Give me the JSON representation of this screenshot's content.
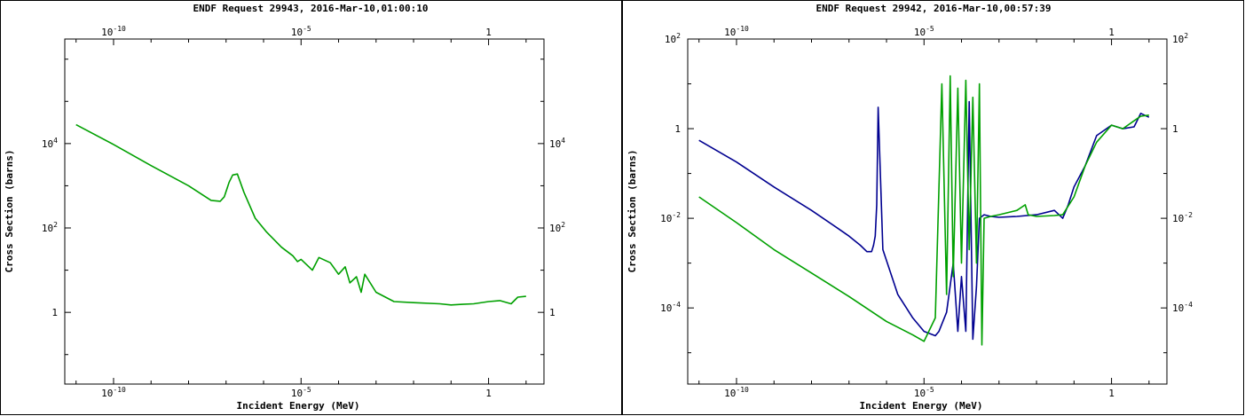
{
  "chart_data": [
    {
      "type": "line",
      "title": "ENDF Request 29943, 2016-Mar-10,01:00:10",
      "xlabel": "Incident Energy (MeV)",
      "ylabel": "Cross Section (barns)",
      "x_scale": "log",
      "y_scale": "log",
      "xlim": [
        5e-12,
        30
      ],
      "ylim": [
        0.02,
        3000000
      ],
      "x_ticks": [
        {
          "value": 1e-10,
          "base": "10",
          "exp": "-10"
        },
        {
          "value": 1e-05,
          "base": "10",
          "exp": "-5"
        },
        {
          "value": 1,
          "base": "1",
          "exp": ""
        }
      ],
      "y_ticks": [
        {
          "value": 1,
          "base": "1",
          "exp": ""
        },
        {
          "value": 100,
          "base": "10",
          "exp": "2"
        },
        {
          "value": 10000,
          "base": "10",
          "exp": "4"
        }
      ],
      "grid": false,
      "series": [
        {
          "color": "#00a000",
          "x": [
            1e-11,
            1e-10,
            1e-09,
            1e-08,
            4e-08,
            7e-08,
            9e-08,
            1.2e-07,
            1.5e-07,
            2e-07,
            3e-07,
            6e-07,
            1.2e-06,
            3e-06,
            6e-06,
            8e-06,
            1e-05,
            2e-05,
            3e-05,
            6e-05,
            0.0001,
            0.00015,
            0.0002,
            0.0003,
            0.0004,
            0.0005,
            0.001,
            0.003,
            0.01,
            0.05,
            0.1,
            0.2,
            0.4,
            1,
            2,
            4,
            6,
            10
          ],
          "y": [
            28000,
            9500,
            3000,
            1000,
            450,
            430,
            550,
            1200,
            1800,
            1900,
            700,
            170,
            80,
            35,
            22,
            16,
            18,
            10,
            20,
            15,
            8,
            12,
            5,
            7,
            3,
            8,
            3,
            1.8,
            1.7,
            1.6,
            1.5,
            1.55,
            1.6,
            1.8,
            1.9,
            1.6,
            2.3,
            2.4
          ]
        }
      ]
    },
    {
      "type": "line",
      "title": "ENDF Request 29942, 2016-Mar-10,00:57:39",
      "xlabel": "Incident Energy (MeV)",
      "ylabel": "Cross Section (barns)",
      "x_scale": "log",
      "y_scale": "log",
      "xlim": [
        5e-12,
        30
      ],
      "ylim": [
        2e-06,
        100
      ],
      "x_ticks": [
        {
          "value": 1e-10,
          "base": "10",
          "exp": "-10"
        },
        {
          "value": 1e-05,
          "base": "10",
          "exp": "-5"
        },
        {
          "value": 1,
          "base": "1",
          "exp": ""
        }
      ],
      "y_ticks": [
        {
          "value": 0.0001,
          "base": "10",
          "exp": "-4"
        },
        {
          "value": 0.01,
          "base": "10",
          "exp": "-2"
        },
        {
          "value": 1,
          "base": "1",
          "exp": ""
        },
        {
          "value": 100,
          "base": "10",
          "exp": "2"
        }
      ],
      "grid": false,
      "series": [
        {
          "color": "#000090",
          "x": [
            1e-11,
            1e-10,
            1e-09,
            1e-08,
            5e-08,
            1e-07,
            2e-07,
            3e-07,
            4e-07,
            4.5e-07,
            5e-07,
            5.5e-07,
            6e-07,
            8e-07,
            2e-06,
            5e-06,
            1e-05,
            2e-05,
            2.5e-05,
            4e-05,
            6e-05,
            8e-05,
            0.0001,
            0.00013,
            0.00016,
            0.0002,
            0.00025,
            0.0003,
            0.0004,
            0.0006,
            0.001,
            0.003,
            0.01,
            0.03,
            0.05,
            0.07,
            0.1,
            0.2,
            0.4,
            1,
            2,
            4,
            6,
            10
          ],
          "y": [
            0.55,
            0.18,
            0.05,
            0.015,
            0.006,
            0.004,
            0.0025,
            0.0018,
            0.0018,
            0.0025,
            0.004,
            0.02,
            3,
            0.002,
            0.0002,
            6e-05,
            3e-05,
            2.4e-05,
            3e-05,
            8e-05,
            0.001,
            3e-05,
            0.0005,
            3e-05,
            4,
            2e-05,
            0.0003,
            0.01,
            0.012,
            0.011,
            0.0105,
            0.011,
            0.012,
            0.015,
            0.01,
            0.02,
            0.05,
            0.15,
            0.7,
            1.2,
            1,
            1.1,
            2.2,
            1.8
          ]
        },
        {
          "color": "#00a000",
          "x": [
            1e-11,
            1e-10,
            1e-09,
            1e-08,
            1e-07,
            1e-06,
            5e-06,
            1e-05,
            2e-05,
            3e-05,
            4e-05,
            5e-05,
            6e-05,
            8e-05,
            0.0001,
            0.00013,
            0.00016,
            0.0002,
            0.00025,
            0.0003,
            0.00035,
            0.0004,
            0.0006,
            0.001,
            0.003,
            0.005,
            0.006,
            0.01,
            0.03,
            0.05,
            0.1,
            0.2,
            0.4,
            1,
            2,
            4,
            6,
            10
          ],
          "y": [
            0.03,
            0.008,
            0.002,
            0.0006,
            0.00018,
            5e-05,
            2.5e-05,
            1.8e-05,
            6e-05,
            10,
            0.0002,
            15,
            0.0005,
            8,
            0.001,
            12,
            0.002,
            5,
            0.001,
            10,
            1.5e-05,
            0.01,
            0.011,
            0.012,
            0.015,
            0.02,
            0.012,
            0.011,
            0.0115,
            0.012,
            0.03,
            0.15,
            0.5,
            1.2,
            1,
            1.5,
            1.9,
            2.0
          ]
        }
      ]
    }
  ]
}
